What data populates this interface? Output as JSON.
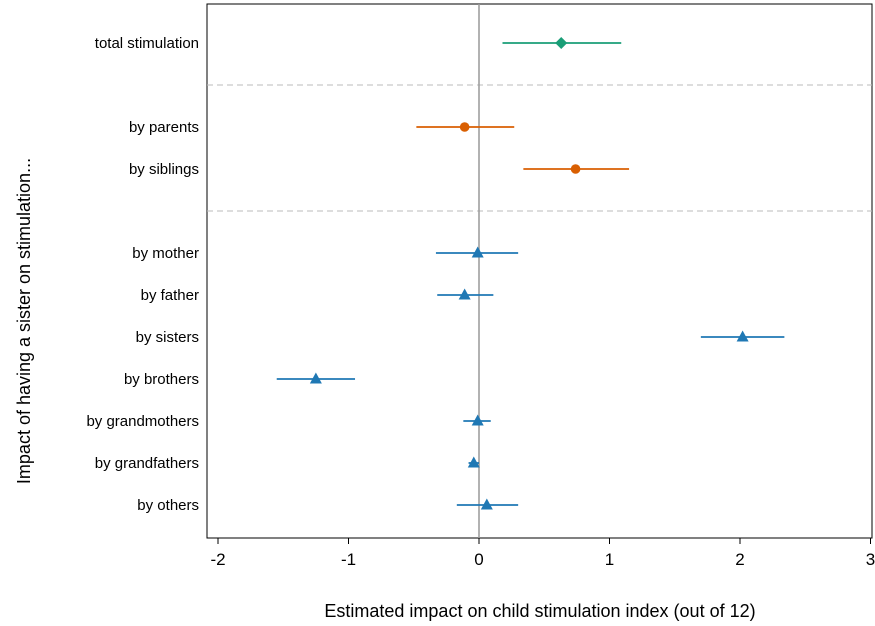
{
  "chart_data": {
    "type": "scatter",
    "subtype": "coefficient-plot",
    "orientation": "horizontal",
    "title": "",
    "xlabel": "Estimated impact on child stimulation index (out of 12)",
    "ylabel": "Impact of having a sister on stimulation...",
    "xlim": [
      -2.1,
      3.05
    ],
    "xticks": [
      -2,
      -1,
      0,
      1,
      2,
      3
    ],
    "xtick_labels": [
      "-2",
      "-1",
      "0",
      "1",
      "2",
      "3"
    ],
    "reference_line_x": 0,
    "grid": false,
    "legend": "none",
    "groups": [
      {
        "marker": "diamond",
        "color": "#1a9e77",
        "items": [
          {
            "label": "total stimulation",
            "estimate": 0.63,
            "ci_low": 0.18,
            "ci_high": 1.09
          }
        ]
      },
      {
        "marker": "circle",
        "color": "#d95f02",
        "items": [
          {
            "label": "by parents",
            "estimate": -0.11,
            "ci_low": -0.48,
            "ci_high": 0.27
          },
          {
            "label": "by siblings",
            "estimate": 0.74,
            "ci_low": 0.34,
            "ci_high": 1.15
          }
        ]
      },
      {
        "marker": "triangle",
        "color": "#1f78b4",
        "items": [
          {
            "label": "by mother",
            "estimate": -0.01,
            "ci_low": -0.33,
            "ci_high": 0.3
          },
          {
            "label": "by father",
            "estimate": -0.11,
            "ci_low": -0.32,
            "ci_high": 0.11
          },
          {
            "label": "by sisters",
            "estimate": 2.02,
            "ci_low": 1.7,
            "ci_high": 2.34
          },
          {
            "label": "by brothers",
            "estimate": -1.25,
            "ci_low": -1.55,
            "ci_high": -0.95
          },
          {
            "label": "by grandmothers",
            "estimate": -0.01,
            "ci_low": -0.12,
            "ci_high": 0.09
          },
          {
            "label": "by grandfathers",
            "estimate": -0.04,
            "ci_low": -0.08,
            "ci_high": 0.0
          },
          {
            "label": "by others",
            "estimate": 0.06,
            "ci_low": -0.17,
            "ci_high": 0.3
          }
        ]
      }
    ]
  }
}
